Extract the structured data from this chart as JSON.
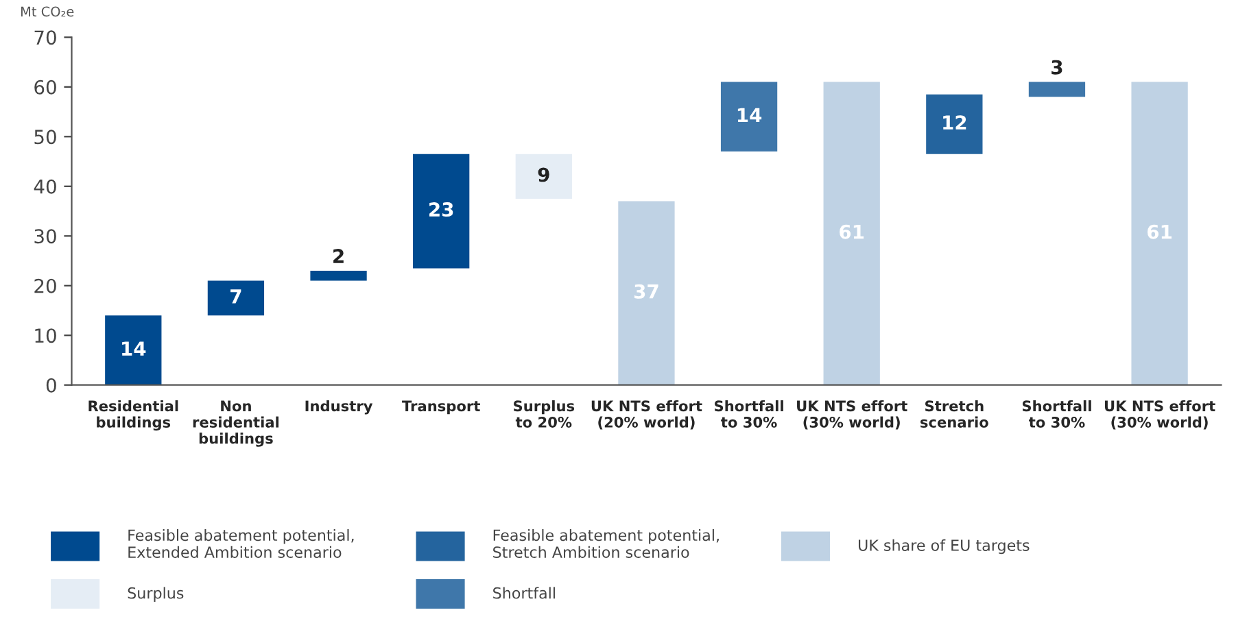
{
  "chart_data": {
    "type": "bar",
    "ylabel": "Mt CO₂e",
    "categories": [
      "Residential\nbuildings",
      "Non\nresidential\nbuildings",
      "Industry",
      "Transport",
      "Surplus\nto 20%",
      "UK NTS effort\n(20% world)",
      "Shortfall\nto 30%",
      "UK NTS effort\n(30% world)",
      "Stretch\nscenario",
      "Shortfall\nto 30%",
      "UK NTS effort\n(30% world)"
    ],
    "series": [
      {
        "name": "Feasible abatement potential,\nExtended Ambition scenario",
        "color": "#004a8f",
        "values": [
          14,
          7,
          2,
          23,
          null,
          null,
          null,
          null,
          null,
          null,
          null
        ],
        "base": [
          0,
          14,
          21,
          23.5,
          null,
          null,
          null,
          null,
          null,
          null,
          null
        ]
      },
      {
        "name": "Feasible abatement potential,\nStretch Ambition scenario",
        "color": "#24649e",
        "values": [
          null,
          null,
          null,
          null,
          null,
          null,
          null,
          null,
          12,
          null,
          null
        ],
        "base": [
          null,
          null,
          null,
          null,
          null,
          null,
          null,
          null,
          46.5,
          null,
          null
        ]
      },
      {
        "name": "UK share of EU targets",
        "color": "#bfd2e4",
        "values": [
          null,
          null,
          null,
          null,
          null,
          37,
          null,
          61,
          null,
          null,
          61
        ],
        "base": [
          null,
          null,
          null,
          null,
          null,
          0,
          null,
          0,
          null,
          null,
          0
        ]
      },
      {
        "name": "Surplus",
        "color": "#e5edf5",
        "values": [
          null,
          null,
          null,
          null,
          9,
          null,
          null,
          null,
          null,
          null,
          null
        ],
        "base": [
          null,
          null,
          null,
          null,
          37.5,
          null,
          null,
          null,
          null,
          null,
          null
        ]
      },
      {
        "name": "Shortfall",
        "color": "#3f77aa",
        "values": [
          null,
          null,
          null,
          null,
          null,
          null,
          14,
          null,
          null,
          3,
          null
        ],
        "base": [
          null,
          null,
          null,
          null,
          null,
          null,
          47,
          null,
          null,
          58,
          null
        ]
      }
    ],
    "data_labels": true,
    "ylim": [
      0,
      70
    ],
    "yticks": [
      0,
      10,
      20,
      30,
      40,
      50,
      60,
      70
    ],
    "grid": false,
    "legend": "bottom"
  }
}
